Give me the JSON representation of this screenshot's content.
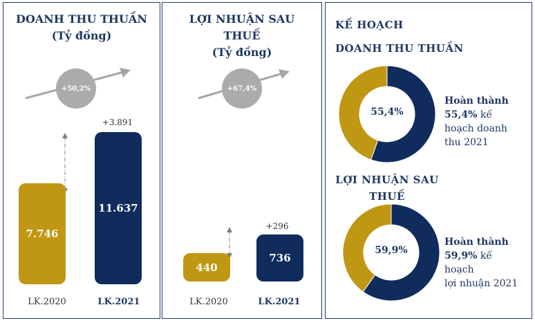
{
  "panel1": {
    "title_line1": "DOANH THU THUẦN",
    "title_line2": "(Tỷ đồng)",
    "growth": "+50,2%",
    "delta": "+3.891",
    "bar1_label": "7.746",
    "bar2_label": "11.637",
    "cat1": "LK.2020",
    "cat2": "LK.2021"
  },
  "panel2": {
    "title_line1": "LỢI NHUẬN SAU",
    "title_line2": "THUẾ",
    "title_line3": "(Tỷ đồng)",
    "growth": "+67,4%",
    "delta": "+296",
    "bar1_label": "440",
    "bar2_label": "736",
    "cat1": "LK.2020",
    "cat2": "LK.2021"
  },
  "panel3": {
    "title1_line1": "KẾ HOẠCH",
    "title1_line2": "DOANH THU THUẦN",
    "donut1_label": "55,4%",
    "note1_line1": "Hoàn thành",
    "note1_pct": "55,4%",
    "note1_rest1": " kế",
    "note1_line3": "hoạch doanh",
    "note1_line4": "thu 2021",
    "title2_line1": "LỢI NHUẬN SAU",
    "title2_line2": "THUẾ",
    "donut2_label": "59,9%",
    "note2_line1": "Hoàn thành",
    "note2_pct": "59,9%",
    "note2_rest1": " kế",
    "note2_line3": "hoạch",
    "note2_line4": "lợi nhuận 2021"
  },
  "colors": {
    "gold": "#c09713",
    "navy": "#0f2c5c",
    "title": "#1f3864",
    "grey": "#ababab"
  },
  "chart_data": [
    {
      "type": "bar",
      "title": "DOANH THU THUẦN (Tỷ đồng)",
      "categories": [
        "LK.2020",
        "LK.2021"
      ],
      "values": [
        7746,
        11637
      ],
      "annotations": [
        "+3.891",
        "+50,2%"
      ],
      "colors": [
        "#c09713",
        "#0f2c5c"
      ]
    },
    {
      "type": "bar",
      "title": "LỢI NHUẬN SAU THUẾ (Tỷ đồng)",
      "categories": [
        "LK.2020",
        "LK.2021"
      ],
      "values": [
        440,
        736
      ],
      "annotations": [
        "+296",
        "+67,4%"
      ],
      "colors": [
        "#c09713",
        "#0f2c5c"
      ]
    },
    {
      "type": "pie",
      "title": "KẾ HOẠCH DOANH THU THUẦN",
      "values": [
        55.4,
        44.6
      ],
      "label": "55,4%",
      "colors": [
        "#0f2c5c",
        "#c09713"
      ]
    },
    {
      "type": "pie",
      "title": "LỢI NHUẬN SAU THUẾ",
      "values": [
        59.9,
        40.1
      ],
      "label": "59,9%",
      "colors": [
        "#0f2c5c",
        "#c09713"
      ]
    }
  ]
}
